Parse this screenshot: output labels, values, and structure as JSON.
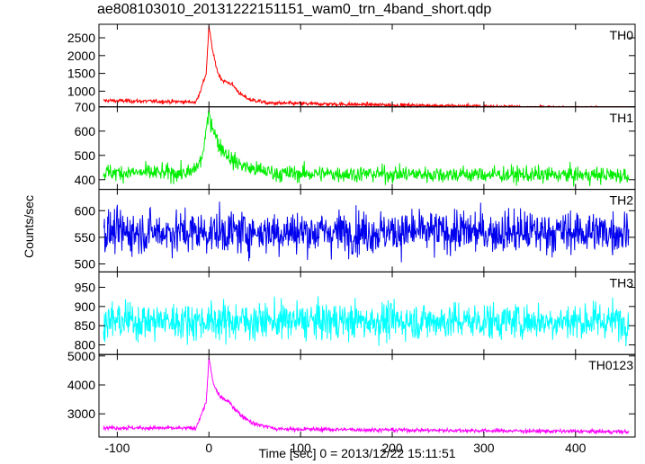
{
  "chart_data": {
    "type": "line",
    "title": "ae808103010_20131222151151_wam0_trn_4band_short.qdp",
    "xlabel": "Time [sec] 0 = 2013/12/22 15:11:51",
    "ylabel": "Counts/sec",
    "xlim": [
      -120,
      465
    ],
    "x_ticks": [
      -100,
      0,
      100,
      200,
      300,
      400
    ],
    "grid": false,
    "panels": [
      {
        "name": "TH0",
        "color": "#ff0000",
        "ylim": [
          560,
          2880
        ],
        "y_ticks": [
          1000,
          1500,
          2000,
          2500
        ],
        "baseline": 650,
        "noise": 28,
        "tail_slope": -0.4,
        "peak": [
          {
            "x": -15,
            "y": 650
          },
          {
            "x": -8,
            "y": 1100
          },
          {
            "x": -3,
            "y": 1500
          },
          {
            "x": 0,
            "y": 2800
          },
          {
            "x": 5,
            "y": 2000
          },
          {
            "x": 10,
            "y": 1500
          },
          {
            "x": 15,
            "y": 1300
          },
          {
            "x": 25,
            "y": 1200
          },
          {
            "x": 35,
            "y": 900
          },
          {
            "x": 45,
            "y": 760
          },
          {
            "x": 60,
            "y": 700
          }
        ]
      },
      {
        "name": "TH1",
        "color": "#00ee00",
        "ylim": [
          360,
          700
        ],
        "y_ticks": [
          400,
          500,
          600,
          700
        ],
        "baseline": 425,
        "noise": 17,
        "tail_slope": -0.02,
        "peak": [
          {
            "x": -20,
            "y": 425
          },
          {
            "x": -8,
            "y": 480
          },
          {
            "x": 0,
            "y": 670
          },
          {
            "x": 10,
            "y": 550
          },
          {
            "x": 25,
            "y": 480
          },
          {
            "x": 45,
            "y": 445
          },
          {
            "x": 70,
            "y": 430
          }
        ]
      },
      {
        "name": "TH2",
        "color": "#0000ee",
        "ylim": [
          485,
          640
        ],
        "y_ticks": [
          500,
          550,
          600
        ],
        "baseline": 560,
        "noise": 20,
        "tail_slope": 0,
        "peak": []
      },
      {
        "name": "TH3",
        "color": "#00ffff",
        "ylim": [
          775,
          990
        ],
        "y_ticks": [
          800,
          850,
          900,
          950
        ],
        "baseline": 862,
        "noise": 24,
        "tail_slope": 0,
        "peak": []
      },
      {
        "name": "TH0123",
        "color": "#ff00ff",
        "ylim": [
          2200,
          5050
        ],
        "y_ticks": [
          3000,
          4000,
          5000
        ],
        "baseline": 2470,
        "noise": 35,
        "tail_slope": -0.25,
        "peak": [
          {
            "x": -15,
            "y": 2470
          },
          {
            "x": -8,
            "y": 3000
          },
          {
            "x": -3,
            "y": 3400
          },
          {
            "x": 0,
            "y": 4900
          },
          {
            "x": 5,
            "y": 4000
          },
          {
            "x": 12,
            "y": 3600
          },
          {
            "x": 22,
            "y": 3400
          },
          {
            "x": 35,
            "y": 2950
          },
          {
            "x": 50,
            "y": 2650
          },
          {
            "x": 70,
            "y": 2520
          }
        ]
      }
    ]
  }
}
